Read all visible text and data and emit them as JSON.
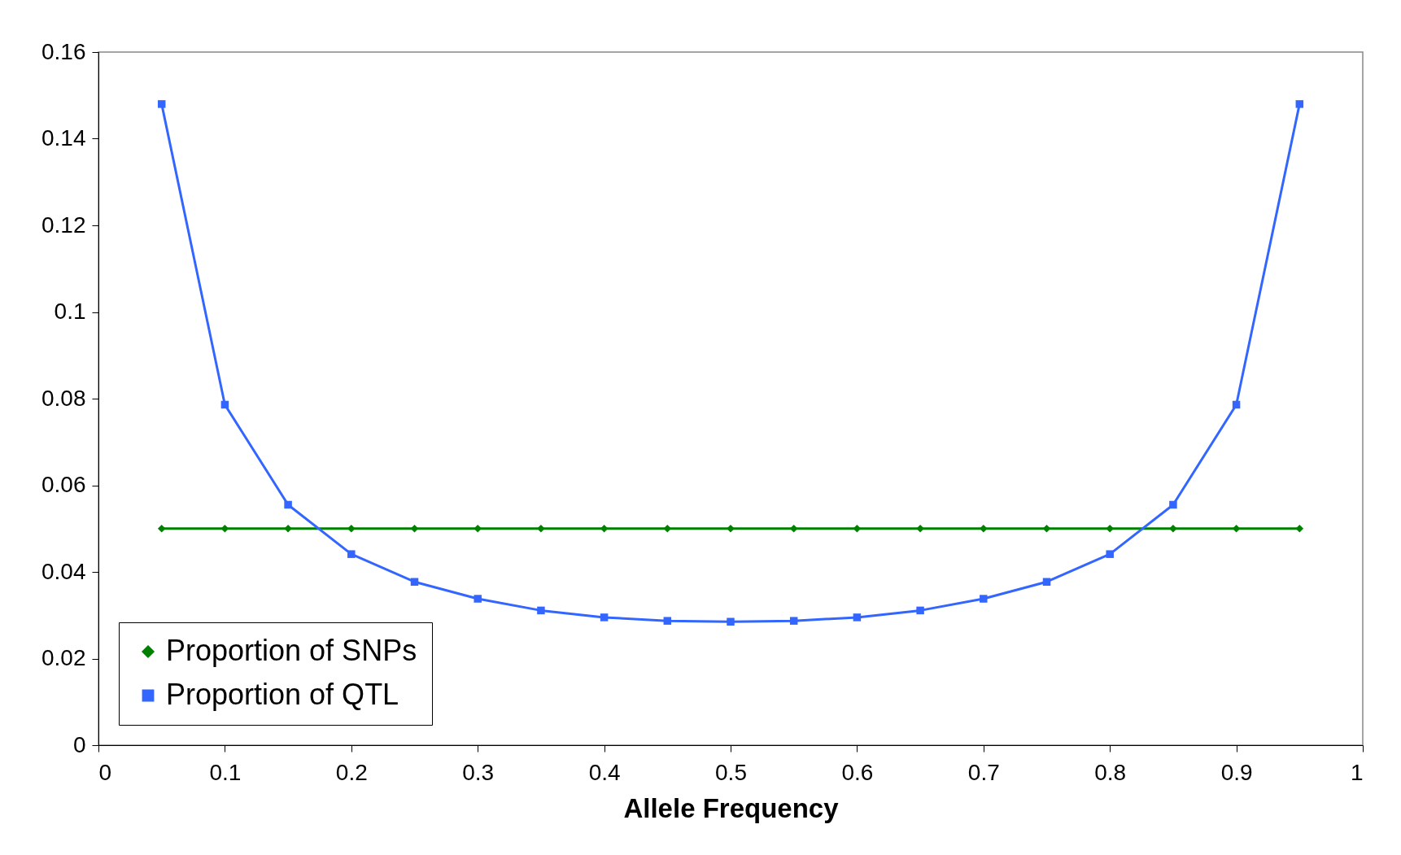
{
  "chart_data": {
    "type": "line",
    "xlabel": "Allele Frequency",
    "x": [
      0.05,
      0.1,
      0.15,
      0.2,
      0.25,
      0.3,
      0.35,
      0.4,
      0.45,
      0.5,
      0.55,
      0.6,
      0.65,
      0.7,
      0.75,
      0.8,
      0.85,
      0.9,
      0.95
    ],
    "series": [
      {
        "name": "Proportion of SNPs",
        "color": "#008000",
        "marker": "diamond",
        "values": [
          0.05,
          0.05,
          0.05,
          0.05,
          0.05,
          0.05,
          0.05,
          0.05,
          0.05,
          0.05,
          0.05,
          0.05,
          0.05,
          0.05,
          0.05,
          0.05,
          0.05,
          0.05,
          0.05
        ]
      },
      {
        "name": "Proportion of QTL",
        "color": "#3366ff",
        "marker": "square",
        "values": [
          0.148,
          0.0786,
          0.0555,
          0.0441,
          0.0377,
          0.0338,
          0.0311,
          0.0295,
          0.0287,
          0.0285,
          0.0287,
          0.0295,
          0.0311,
          0.0338,
          0.0377,
          0.0441,
          0.0555,
          0.0786,
          0.148
        ]
      }
    ],
    "xlim": [
      0,
      1
    ],
    "xticks": [
      0,
      0.1,
      0.2,
      0.3,
      0.4,
      0.5,
      0.6,
      0.7,
      0.8,
      0.9,
      1
    ],
    "ylim": [
      0,
      0.16
    ],
    "yticks": [
      0,
      0.02,
      0.04,
      0.06,
      0.08,
      0.1,
      0.12,
      0.14,
      0.16
    ],
    "grid": false,
    "legend": "bottom left",
    "line_style": "solid"
  }
}
